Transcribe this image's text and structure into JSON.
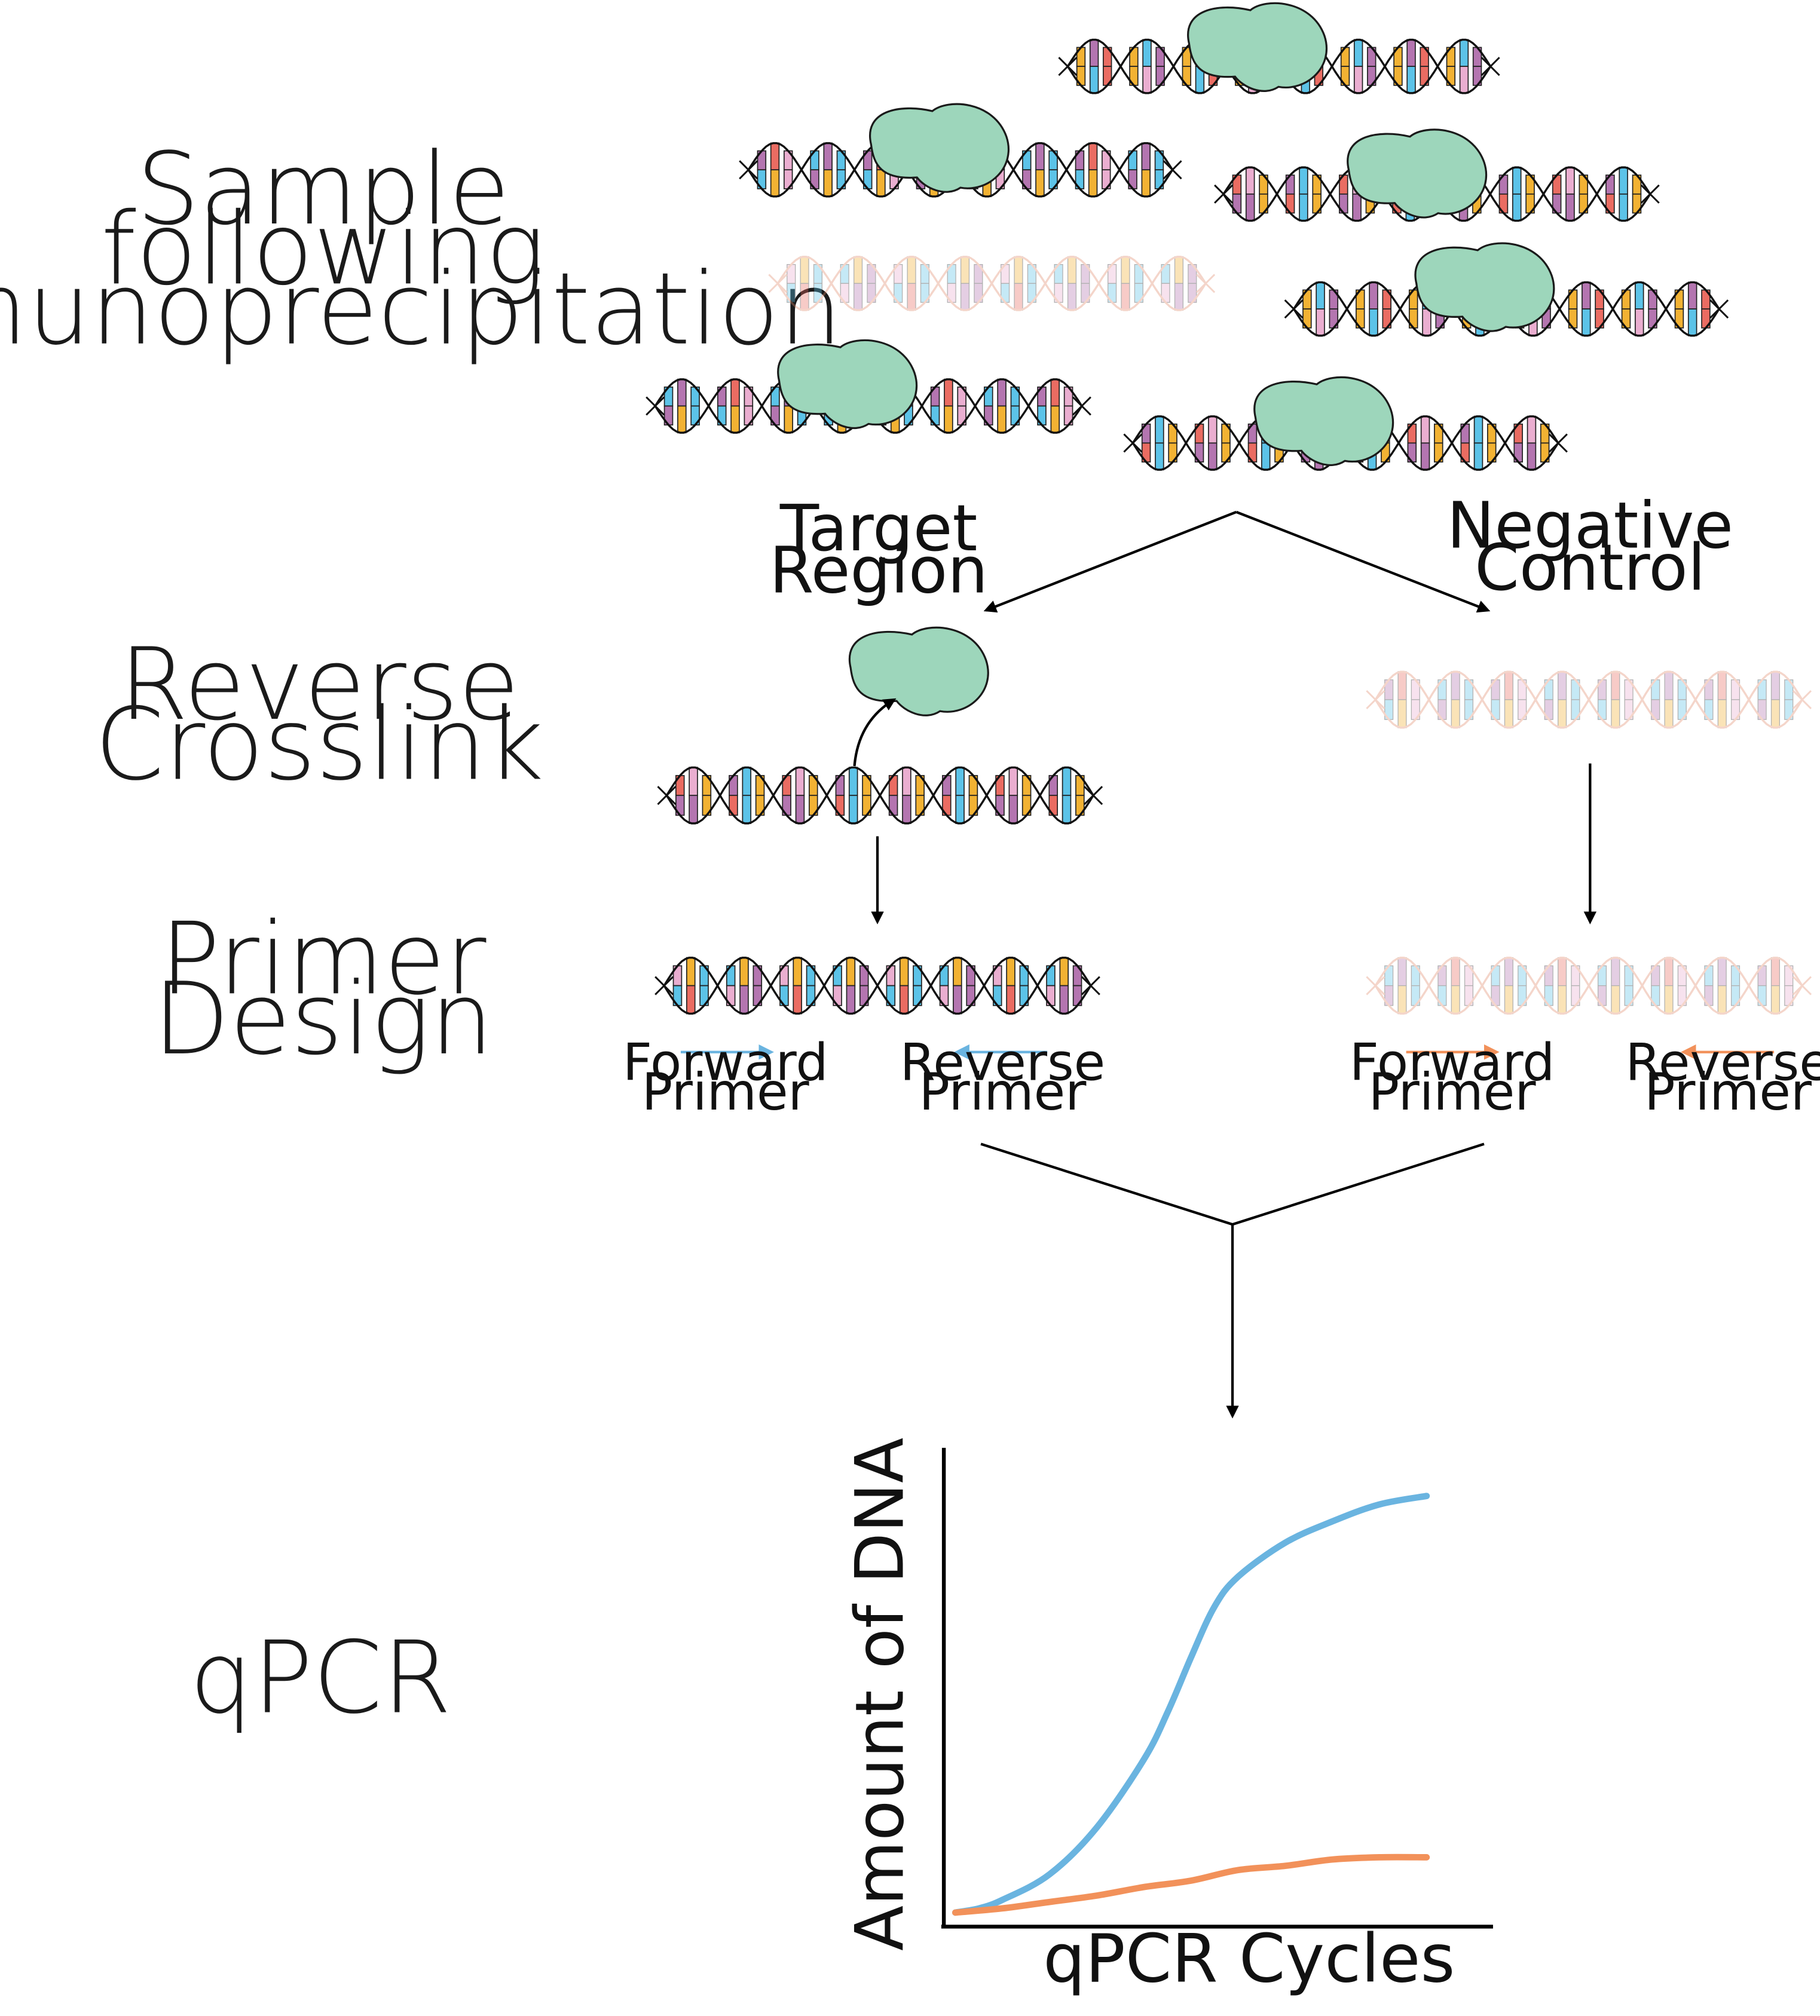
{
  "steps": {
    "sample": [
      "Sample",
      "following",
      "Immunoprecipitation"
    ],
    "reverse_crosslink": [
      "Reverse",
      "Crosslink"
    ],
    "primer_design": [
      "Primer",
      "Design"
    ],
    "qpcr": "qPCR"
  },
  "branches": {
    "target": [
      "Target",
      "Region"
    ],
    "negative": [
      "Negative",
      "Control"
    ]
  },
  "primers": {
    "forward": [
      "Forward",
      "Primer"
    ],
    "reverse": [
      "Reverse",
      "Primer"
    ]
  },
  "colors": {
    "target": "#6ab4e0",
    "control": "#f2915a",
    "protein": "#9dd6bb",
    "base_blue": "#5cc3e8",
    "base_orange": "#f2b233",
    "base_purple": "#b475b0",
    "base_red": "#ea6c62",
    "base_pink": "#eaaed0"
  },
  "chart_data": {
    "type": "line",
    "xlabel": "qPCR Cycles",
    "ylabel": "Amount of DNA",
    "series": [
      {
        "x": [
          0,
          0.05,
          0.1,
          0.2,
          0.3,
          0.4,
          0.45,
          0.5,
          0.55,
          0.6,
          0.7,
          0.8,
          0.9,
          1.0
        ],
        "values": [
          0.0,
          0.01,
          0.03,
          0.09,
          0.2,
          0.36,
          0.47,
          0.6,
          0.72,
          0.79,
          0.87,
          0.92,
          0.96,
          0.98
        ]
      },
      {
        "x": [
          0,
          0.1,
          0.2,
          0.3,
          0.4,
          0.5,
          0.6,
          0.7,
          0.8,
          0.9,
          1.0
        ],
        "values": [
          0.0,
          0.01,
          0.025,
          0.04,
          0.06,
          0.075,
          0.1,
          0.11,
          0.125,
          0.13,
          0.13
        ]
      }
    ]
  }
}
